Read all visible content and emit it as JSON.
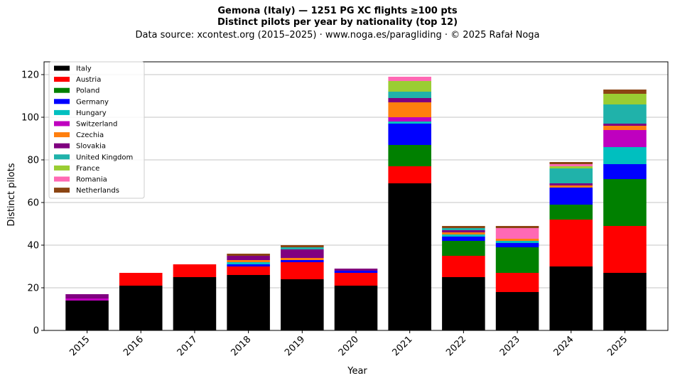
{
  "header": {
    "title_line1": "Gemona (Italy)  —  1251 PG XC flights ≥100 pts",
    "title_line2": "Distinct pilots per year by nationality (top 12)",
    "subtitle": "Data source: xcontest.org (2015–2025)  ·  www.noga.es/paragliding  ·  © 2025 Rafał Noga"
  },
  "chart_data": {
    "type": "bar",
    "stacked": true,
    "xlabel": "Year",
    "ylabel": "Distinct pilots",
    "ylim": [
      0,
      126
    ],
    "yticks": [
      0,
      20,
      40,
      60,
      80,
      100,
      120
    ],
    "grid": "horizontal",
    "legend_position": "top-left",
    "categories": [
      "2015",
      "2016",
      "2017",
      "2018",
      "2019",
      "2020",
      "2021",
      "2022",
      "2023",
      "2024",
      "2025"
    ],
    "series": [
      {
        "name": "Italy",
        "color": "#000000",
        "values": [
          14,
          21,
          25,
          26,
          24,
          21,
          69,
          25,
          18,
          30,
          27
        ]
      },
      {
        "name": "Austria",
        "color": "#ff0000",
        "values": [
          0,
          6,
          6,
          4,
          8,
          6,
          8,
          10,
          9,
          22,
          22
        ]
      },
      {
        "name": "Poland",
        "color": "#008000",
        "values": [
          0,
          0,
          0,
          0,
          0,
          0,
          10,
          7,
          12,
          7,
          22
        ]
      },
      {
        "name": "Germany",
        "color": "#0000ff",
        "values": [
          0,
          0,
          0,
          1,
          1,
          1,
          10,
          2,
          2,
          8,
          7
        ]
      },
      {
        "name": "Hungary",
        "color": "#00bfbf",
        "values": [
          0,
          0,
          0,
          1,
          0,
          0,
          1,
          1,
          1,
          0,
          8
        ]
      },
      {
        "name": "Switzerland",
        "color": "#bf00bf",
        "values": [
          1,
          0,
          0,
          0,
          0,
          0,
          2,
          0,
          0,
          0,
          8
        ]
      },
      {
        "name": "Czechia",
        "color": "#ff7f0e",
        "values": [
          0,
          0,
          0,
          1,
          1,
          0,
          7,
          1,
          1,
          1,
          2
        ]
      },
      {
        "name": "Slovakia",
        "color": "#800080",
        "values": [
          2,
          0,
          0,
          2,
          4,
          1,
          2,
          1,
          0,
          1,
          1
        ]
      },
      {
        "name": "United Kingdom",
        "color": "#20b2aa",
        "values": [
          0,
          0,
          0,
          0,
          1,
          0,
          3,
          1,
          0,
          7,
          9
        ]
      },
      {
        "name": "France",
        "color": "#9acd32",
        "values": [
          0,
          0,
          0,
          0,
          0,
          0,
          5,
          0,
          0,
          1,
          5
        ]
      },
      {
        "name": "Romania",
        "color": "#ff69b4",
        "values": [
          0,
          0,
          0,
          0,
          0,
          0,
          2,
          0,
          5,
          1,
          0
        ]
      },
      {
        "name": "Netherlands",
        "color": "#8b4513",
        "values": [
          0,
          0,
          0,
          1,
          1,
          0,
          0,
          1,
          1,
          1,
          2
        ]
      }
    ]
  }
}
